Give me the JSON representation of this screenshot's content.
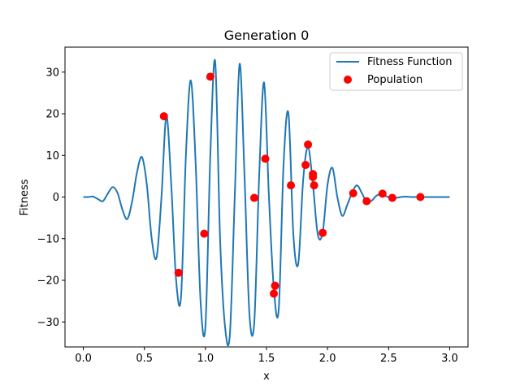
{
  "chart_data": {
    "type": "line",
    "title": "Generation 0",
    "xlabel": "x",
    "ylabel": "Fitness",
    "xlim": [
      -0.15,
      3.15
    ],
    "ylim": [
      -36,
      36
    ],
    "xticks": [
      "0.0",
      "0.5",
      "1.0",
      "1.5",
      "2.0",
      "2.5",
      "3.0"
    ],
    "xtick_values": [
      0,
      0.5,
      1.0,
      1.5,
      2.0,
      2.5,
      3.0
    ],
    "yticks": [
      "−30",
      "−20",
      "−10",
      "0",
      "10",
      "20",
      "30"
    ],
    "ytick_values": [
      -30,
      -20,
      -10,
      0,
      10,
      20,
      30
    ],
    "grid": false,
    "legend_position": "top-right",
    "series": [
      {
        "name": "Fitness Function",
        "kind": "line",
        "color": "#1f77b4",
        "x": [
          0.0,
          0.04,
          0.08,
          0.12,
          0.16,
          0.2,
          0.24,
          0.28,
          0.32,
          0.36,
          0.4,
          0.44,
          0.48,
          0.52,
          0.56,
          0.6,
          0.64,
          0.68,
          0.72,
          0.76,
          0.8,
          0.84,
          0.88,
          0.92,
          0.96,
          1.0,
          1.04,
          1.08,
          1.12,
          1.16,
          1.2,
          1.24,
          1.28,
          1.32,
          1.36,
          1.4,
          1.44,
          1.48,
          1.52,
          1.56,
          1.6,
          1.64,
          1.68,
          1.72,
          1.76,
          1.8,
          1.84,
          1.88,
          1.92,
          1.96,
          2.0,
          2.04,
          2.08,
          2.12,
          2.16,
          2.2,
          2.24,
          2.28,
          2.32,
          2.36,
          2.4,
          2.44,
          2.48,
          2.52,
          2.56,
          2.6,
          2.64,
          2.68,
          2.72,
          2.76,
          2.8,
          2.84,
          2.88,
          2.92,
          2.96,
          3.0
        ],
        "y": [
          0.0,
          0.0,
          0.1,
          -0.5,
          -1.0,
          0.8,
          2.4,
          1.0,
          -3.0,
          -5.3,
          -1.0,
          6.0,
          9.6,
          3.0,
          -10.0,
          -14.5,
          0.0,
          19.4,
          3.0,
          -20.0,
          -24.0,
          10.0,
          28.0,
          8.0,
          -25.0,
          -31.0,
          10.0,
          32.5,
          -10.0,
          -31.0,
          -33.0,
          0.0,
          32.0,
          5.0,
          -28.0,
          -30.0,
          5.0,
          27.5,
          0.0,
          -22.0,
          -27.0,
          8.0,
          20.0,
          -9.0,
          -16.0,
          4.0,
          12.0,
          3.0,
          -9.0,
          -8.5,
          3.0,
          7.0,
          0.0,
          -4.5,
          -2.0,
          1.0,
          2.8,
          1.0,
          -1.2,
          -0.9,
          0.3,
          0.8,
          0.2,
          -0.3,
          -0.2,
          0.0,
          0.1,
          0.0,
          0.0,
          0.0,
          0.0,
          0.0,
          0.0,
          0.0,
          0.0,
          0.0
        ]
      },
      {
        "name": "Population",
        "kind": "scatter",
        "color": "#ff0000",
        "x": [
          0.66,
          0.78,
          0.99,
          1.04,
          1.4,
          1.49,
          1.56,
          1.57,
          1.7,
          1.82,
          1.84,
          1.88,
          1.88,
          1.89,
          1.96,
          2.21,
          2.32,
          2.45,
          2.53,
          2.76
        ],
        "y": [
          19.4,
          -18.2,
          -8.8,
          28.9,
          -0.2,
          9.2,
          -23.2,
          -21.3,
          2.8,
          7.7,
          12.6,
          5.5,
          4.8,
          2.8,
          -8.6,
          0.9,
          -1.0,
          0.8,
          -0.2,
          0.0
        ]
      }
    ]
  }
}
